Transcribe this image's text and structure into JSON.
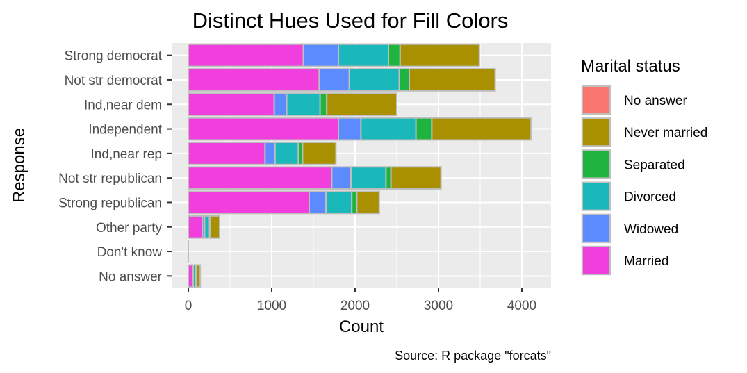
{
  "chart_data": {
    "type": "bar",
    "orientation": "horizontal",
    "stacked": true,
    "title": "Distinct Hues Used for Fill Colors",
    "xlabel": "Count",
    "ylabel": "Response",
    "caption": "Source: R package \"forcats\"",
    "xlim": [
      -200,
      4350
    ],
    "x_ticks": [
      0,
      1000,
      2000,
      3000,
      4000
    ],
    "x_tick_labels": [
      "0",
      "1000",
      "2000",
      "3000",
      "4000"
    ],
    "grid": true,
    "legend_position": "right",
    "categories": [
      "Strong democrat",
      "Not str democrat",
      "Ind,near dem",
      "Independent",
      "Ind,near rep",
      "Not str republican",
      "Strong republican",
      "Other party",
      "Don't know",
      "No answer"
    ],
    "series": [
      {
        "name": "Married",
        "color": "#F03FDC",
        "values": [
          1380,
          1570,
          1030,
          1800,
          920,
          1720,
          1450,
          170,
          0,
          50
        ]
      },
      {
        "name": "Widowed",
        "color": "#5C8BFF",
        "values": [
          420,
          360,
          150,
          270,
          120,
          230,
          200,
          25,
          0,
          8
        ]
      },
      {
        "name": "Divorced",
        "color": "#1AB7BB",
        "values": [
          600,
          600,
          400,
          660,
          280,
          420,
          310,
          60,
          0,
          30
        ]
      },
      {
        "name": "Separated",
        "color": "#1FB33F",
        "values": [
          140,
          120,
          80,
          190,
          50,
          60,
          60,
          10,
          0,
          5
        ]
      },
      {
        "name": "Never married",
        "color": "#A89000",
        "values": [
          950,
          1030,
          840,
          1190,
          400,
          600,
          270,
          110,
          0,
          50
        ]
      },
      {
        "name": "No answer",
        "color": "#F8766D",
        "values": [
          0,
          0,
          0,
          0,
          0,
          0,
          0,
          0,
          0,
          0
        ]
      }
    ],
    "legend_title": "Marital status",
    "legend_order": [
      "No answer",
      "Never married",
      "Separated",
      "Divorced",
      "Widowed",
      "Married"
    ],
    "colors": {
      "panel_background": "#EBEBEB",
      "gridline": "#FFFFFF",
      "bar_outline": "#BEBEBE",
      "tick_text": "#4D4D4D"
    }
  }
}
